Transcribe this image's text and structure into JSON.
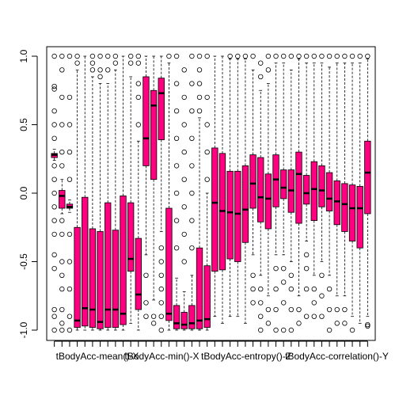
{
  "chart_data": {
    "type": "box",
    "orientation": "vertical",
    "box_color": "#ff0080",
    "median_color": "#000000",
    "ylim": [
      -1.05,
      1.05
    ],
    "y_ticks": [
      "-1.0",
      "-0.5",
      "0.0",
      "0.5",
      "1.0"
    ],
    "y_tick_values": [
      -1.0,
      -0.5,
      0.0,
      0.5,
      1.0
    ],
    "x_label_items": [
      {
        "index": 0,
        "label": "tBodyAcc-mean()-X"
      },
      {
        "index": 9,
        "label": "tBodyAcc-min()-X"
      },
      {
        "index": 19,
        "label": "tBodyAcc-entropy()-Z"
      },
      {
        "index": 30,
        "label": "tBodyAcc-correlation()-Y"
      }
    ],
    "boxes": [
      {
        "q1": 0.26,
        "median": 0.28,
        "q3": 0.29,
        "wmin": 0.24,
        "wmax": 0.32,
        "outliers": [
          1.0,
          0.78,
          0.76,
          0.6,
          0.5,
          0.4,
          0.2,
          0.1,
          0.0,
          -0.1,
          -0.2,
          -0.3,
          -0.45,
          -0.55,
          -0.85,
          -0.9,
          -1.0
        ]
      },
      {
        "q1": -0.11,
        "median": -0.02,
        "q3": 0.02,
        "wmin": -0.15,
        "wmax": 0.1,
        "outliers": [
          1.0,
          0.9,
          0.7,
          0.5,
          0.3,
          0.2,
          -0.2,
          -0.3,
          -0.5,
          -0.6,
          -0.7,
          -0.85,
          -0.95,
          -1.0
        ]
      },
      {
        "q1": -0.11,
        "median": -0.1,
        "q3": -0.08,
        "wmin": -0.14,
        "wmax": -0.05,
        "outliers": [
          1.0,
          0.7,
          0.5,
          0.3,
          0.1,
          -0.3,
          -0.5,
          -0.7,
          -0.9,
          -1.0
        ]
      },
      {
        "q1": -0.98,
        "median": -0.93,
        "q3": -0.25,
        "wmin": -1.0,
        "wmax": 0.9,
        "outliers": [
          1.0,
          0.95
        ]
      },
      {
        "q1": -0.97,
        "median": -0.84,
        "q3": -0.03,
        "wmin": -1.0,
        "wmax": 1.0,
        "outliers": []
      },
      {
        "q1": -0.98,
        "median": -0.85,
        "q3": -0.26,
        "wmin": -1.0,
        "wmax": 0.85,
        "outliers": [
          1.0,
          0.95,
          0.9
        ]
      },
      {
        "q1": -0.99,
        "median": -0.94,
        "q3": -0.28,
        "wmin": -1.0,
        "wmax": 0.8,
        "outliers": [
          1.0,
          0.9,
          0.85
        ]
      },
      {
        "q1": -0.98,
        "median": -0.85,
        "q3": -0.07,
        "wmin": -1.0,
        "wmax": 0.8,
        "outliers": [
          1.0,
          0.9
        ]
      },
      {
        "q1": -0.98,
        "median": -0.85,
        "q3": -0.27,
        "wmin": -1.0,
        "wmax": 0.9,
        "outliers": [
          1.0,
          0.95
        ]
      },
      {
        "q1": -0.96,
        "median": -0.88,
        "q3": -0.02,
        "wmin": -1.0,
        "wmax": 1.0,
        "outliers": []
      },
      {
        "q1": -0.57,
        "median": -0.48,
        "q3": -0.07,
        "wmin": -0.95,
        "wmax": 0.85,
        "outliers": [
          1.0,
          0.95
        ]
      },
      {
        "q1": -0.85,
        "median": -0.74,
        "q3": -0.33,
        "wmin": -1.0,
        "wmax": 0.38,
        "outliers": [
          0.5,
          0.7,
          0.8,
          0.95,
          1.0
        ]
      },
      {
        "q1": 0.2,
        "median": 0.4,
        "q3": 0.85,
        "wmin": -0.45,
        "wmax": 1.0,
        "outliers": [
          -0.6,
          -0.8,
          -0.9
        ]
      },
      {
        "q1": 0.1,
        "median": 0.64,
        "q3": 0.75,
        "wmin": -0.78,
        "wmax": 1.0,
        "outliers": [
          -0.9,
          -0.95
        ]
      },
      {
        "q1": 0.39,
        "median": 0.73,
        "q3": 0.84,
        "wmin": -0.28,
        "wmax": 1.0,
        "outliers": [
          -0.4,
          -0.5,
          -0.6,
          -0.7,
          -0.8,
          -0.9,
          -1.0
        ]
      },
      {
        "q1": -0.93,
        "median": -0.88,
        "q3": -0.11,
        "wmin": -1.0,
        "wmax": 0.95,
        "outliers": [
          1.0
        ]
      },
      {
        "q1": -0.99,
        "median": -0.95,
        "q3": -0.82,
        "wmin": -1.0,
        "wmax": -0.62,
        "outliers": [
          -0.4,
          -0.2,
          0.0,
          0.2,
          0.4,
          0.6,
          0.8,
          1.0
        ]
      },
      {
        "q1": -0.99,
        "median": -0.96,
        "q3": -0.87,
        "wmin": -1.0,
        "wmax": -0.72,
        "outliers": [
          -0.5,
          -0.3,
          -0.1,
          0.1,
          0.3,
          0.5,
          0.7,
          0.9
        ]
      },
      {
        "q1": -0.99,
        "median": -0.95,
        "q3": -0.82,
        "wmin": -1.0,
        "wmax": -0.6,
        "outliers": [
          -0.4,
          -0.2,
          0.0,
          0.2,
          0.4,
          0.6,
          0.8,
          1.0
        ]
      },
      {
        "q1": -0.99,
        "median": -0.93,
        "q3": -0.4,
        "wmin": -1.0,
        "wmax": 0.55,
        "outliers": [
          0.6,
          0.7,
          0.8,
          0.9,
          1.0
        ]
      },
      {
        "q1": -0.98,
        "median": -0.92,
        "q3": -0.53,
        "wmin": -1.0,
        "wmax": 0.0,
        "outliers": [
          0.1,
          0.3,
          0.5,
          0.7,
          1.0
        ]
      },
      {
        "q1": -0.57,
        "median": -0.07,
        "q3": 0.33,
        "wmin": -0.9,
        "wmax": 1.0,
        "outliers": []
      },
      {
        "q1": -0.56,
        "median": -0.13,
        "q3": 0.29,
        "wmin": -0.95,
        "wmax": 1.0,
        "outliers": []
      },
      {
        "q1": -0.48,
        "median": -0.14,
        "q3": 0.16,
        "wmin": -0.9,
        "wmax": 0.98,
        "outliers": [
          1.0
        ]
      },
      {
        "q1": -0.5,
        "median": -0.15,
        "q3": 0.16,
        "wmin": -0.9,
        "wmax": 0.98,
        "outliers": [
          1.0
        ]
      },
      {
        "q1": -0.36,
        "median": -0.12,
        "q3": 0.2,
        "wmin": -0.95,
        "wmax": 0.98,
        "outliers": [
          1.0
        ]
      },
      {
        "q1": -0.11,
        "median": 0.07,
        "q3": 0.28,
        "wmin": -0.45,
        "wmax": 0.9,
        "outliers": [
          -0.6,
          -0.7,
          -0.8,
          1.0
        ]
      },
      {
        "q1": -0.21,
        "median": -0.03,
        "q3": 0.26,
        "wmin": -0.6,
        "wmax": 0.75,
        "outliers": [
          -0.7,
          -0.8,
          -0.9,
          -1.0,
          0.85,
          0.95
        ]
      },
      {
        "q1": -0.26,
        "median": -0.04,
        "q3": 0.14,
        "wmin": -0.75,
        "wmax": 0.8,
        "outliers": [
          -0.85,
          -0.95,
          0.9,
          1.0
        ]
      },
      {
        "q1": -0.1,
        "median": 0.1,
        "q3": 0.28,
        "wmin": -0.45,
        "wmax": 0.95,
        "outliers": [
          -0.55,
          -0.7,
          -0.85,
          -1.0,
          1.0
        ]
      },
      {
        "q1": -0.04,
        "median": 0.04,
        "q3": 0.17,
        "wmin": -0.45,
        "wmax": 0.95,
        "outliers": [
          -0.55,
          -0.65,
          -0.8,
          -1.0,
          1.0
        ]
      },
      {
        "q1": -0.14,
        "median": 0.02,
        "q3": 0.17,
        "wmin": -0.5,
        "wmax": 0.9,
        "outliers": [
          -0.6,
          -0.7,
          -0.85,
          -1.0,
          1.0
        ]
      },
      {
        "q1": -0.22,
        "median": 0.14,
        "q3": 0.3,
        "wmin": -0.75,
        "wmax": 0.98,
        "outliers": [
          -0.85,
          -0.95,
          1.0
        ]
      },
      {
        "q1": -0.08,
        "median": 0.0,
        "q3": 0.13,
        "wmin": -0.35,
        "wmax": 0.95,
        "outliers": [
          -0.45,
          -0.55,
          -0.7,
          -0.9,
          1.0
        ]
      },
      {
        "q1": -0.2,
        "median": 0.03,
        "q3": 0.23,
        "wmin": -0.6,
        "wmax": 0.95,
        "outliers": [
          -0.7,
          -0.8,
          -0.9,
          1.0
        ]
      },
      {
        "q1": -0.1,
        "median": 0.02,
        "q3": 0.2,
        "wmin": -0.5,
        "wmax": 0.95,
        "outliers": [
          -0.6,
          -0.75,
          -0.9,
          1.0
        ]
      },
      {
        "q1": -0.13,
        "median": -0.04,
        "q3": 0.15,
        "wmin": -0.6,
        "wmax": 0.92,
        "outliers": [
          -0.7,
          -0.85,
          -1.0,
          1.0
        ]
      },
      {
        "q1": -0.23,
        "median": -0.06,
        "q3": 0.09,
        "wmin": -0.75,
        "wmax": 0.95,
        "outliers": [
          -0.85,
          -0.95,
          1.0
        ]
      },
      {
        "q1": -0.28,
        "median": -0.08,
        "q3": 0.07,
        "wmin": -0.75,
        "wmax": 0.95,
        "outliers": [
          -0.85,
          -0.95,
          1.0
        ]
      },
      {
        "q1": -0.35,
        "median": -0.11,
        "q3": 0.06,
        "wmin": -0.9,
        "wmax": 0.95,
        "outliers": [
          -1.0,
          1.0
        ]
      },
      {
        "q1": -0.4,
        "median": -0.11,
        "q3": 0.05,
        "wmin": -0.95,
        "wmax": 0.95,
        "outliers": [
          1.0
        ]
      },
      {
        "q1": -0.15,
        "median": 0.15,
        "q3": 0.38,
        "wmin": -0.9,
        "wmax": 0.98,
        "outliers": [
          -0.96,
          -0.97,
          1.0
        ]
      }
    ]
  }
}
